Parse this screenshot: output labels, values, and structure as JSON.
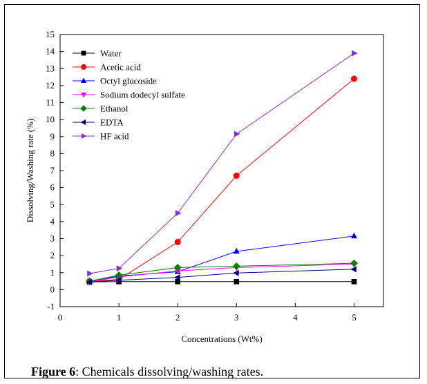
{
  "caption": {
    "label": "Figure 6",
    "text": ": Chemicals dissolving/washing rates."
  },
  "chart_data": {
    "type": "line",
    "title": "",
    "xlabel": "Concentrations (Wt%)",
    "ylabel": "Dissolving/Washing rate (%)",
    "xlim": [
      0,
      5.5
    ],
    "ylim": [
      -1,
      15
    ],
    "xticks": [
      0,
      1,
      2,
      3,
      4,
      5
    ],
    "yticks": [
      -1,
      0,
      1,
      2,
      3,
      4,
      5,
      6,
      7,
      8,
      9,
      10,
      11,
      12,
      13,
      14,
      15
    ],
    "grid": false,
    "legend_position": "top-left",
    "series": [
      {
        "name": "Water",
        "color": "#000000",
        "marker": "square",
        "x": [
          0.5,
          1,
          2,
          3,
          5
        ],
        "y": [
          0.45,
          0.47,
          0.47,
          0.47,
          0.47
        ]
      },
      {
        "name": "Acetic acid",
        "color": "#ff0000",
        "marker": "circle",
        "x": [
          0.5,
          1,
          2,
          3,
          5
        ],
        "y": [
          0.5,
          0.6,
          2.8,
          6.7,
          12.4
        ]
      },
      {
        "name": "Octyl glucoside",
        "color": "#0000ff",
        "marker": "triangle-up",
        "x": [
          0.5,
          1,
          2,
          3,
          5
        ],
        "y": [
          0.5,
          0.8,
          1.05,
          2.25,
          3.15
        ]
      },
      {
        "name": "Sodium dodecyl sulfate",
        "color": "#ff00ff",
        "marker": "triangle-down",
        "x": [
          0.5,
          1,
          2,
          3,
          5
        ],
        "y": [
          0.45,
          0.75,
          1.1,
          1.3,
          1.5
        ]
      },
      {
        "name": "Ethanol",
        "color": "#008000",
        "marker": "diamond",
        "x": [
          0.5,
          1,
          2,
          3,
          5
        ],
        "y": [
          0.5,
          0.85,
          1.3,
          1.38,
          1.55
        ]
      },
      {
        "name": "EDTA",
        "color": "#000080",
        "marker": "triangle-left",
        "x": [
          0.5,
          1,
          2,
          3,
          5
        ],
        "y": [
          0.45,
          0.55,
          0.72,
          0.98,
          1.2
        ]
      },
      {
        "name": "HF acid",
        "color": "#8a2be2",
        "marker": "triangle-right",
        "x": [
          0.5,
          1,
          2,
          3,
          5
        ],
        "y": [
          0.95,
          1.25,
          4.5,
          9.15,
          13.9
        ]
      }
    ]
  }
}
